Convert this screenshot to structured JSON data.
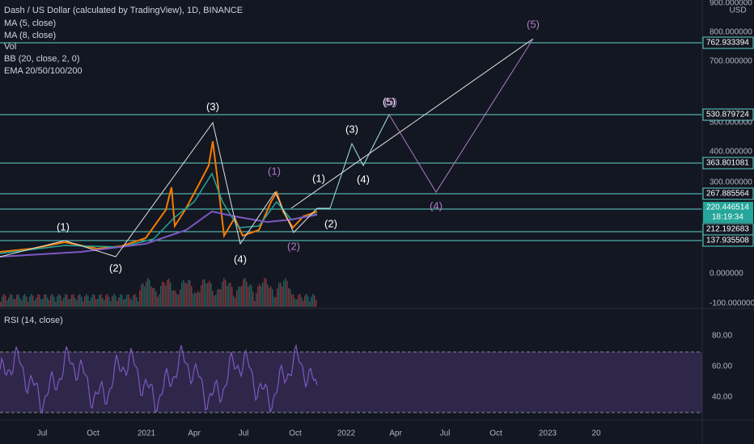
{
  "legend": {
    "title": "Dash / US Dollar (calculated by TradingView), 1D, BINANCE",
    "indicators": [
      "MA (5, close)",
      "MA (8, close)",
      "Vol",
      "BB (20, close, 2, 0)",
      "EMA 20/50/100/200"
    ]
  },
  "price_axis": {
    "currency": "USD",
    "labels": [
      "900.000000",
      "800.000000",
      "700.000000",
      "500.000000",
      "400.000000",
      "300.000000",
      "0.000000",
      "-100.000000"
    ],
    "levels": [
      "762.933394",
      "530.879724",
      "363.801081",
      "267.885564",
      "212.192683",
      "137.935508"
    ],
    "current_price": "220.446514",
    "countdown": "18:19:34"
  },
  "rsi": {
    "title": "RSI (14, close)",
    "labels": [
      "80.00",
      "60.00",
      "40.00"
    ]
  },
  "time_axis": [
    "Jul",
    "Oct",
    "2021",
    "Apr",
    "Jul",
    "Oct",
    "2022",
    "Apr",
    "Jul",
    "Oct",
    "2023",
    "20"
  ],
  "waves": [
    "(1)",
    "(2)",
    "(3)",
    "(4)",
    "(1)",
    "(2)",
    "(1)",
    "(2)",
    "(3)",
    "(4)",
    "(5)",
    "(5)",
    "(5)",
    "(4)"
  ]
}
